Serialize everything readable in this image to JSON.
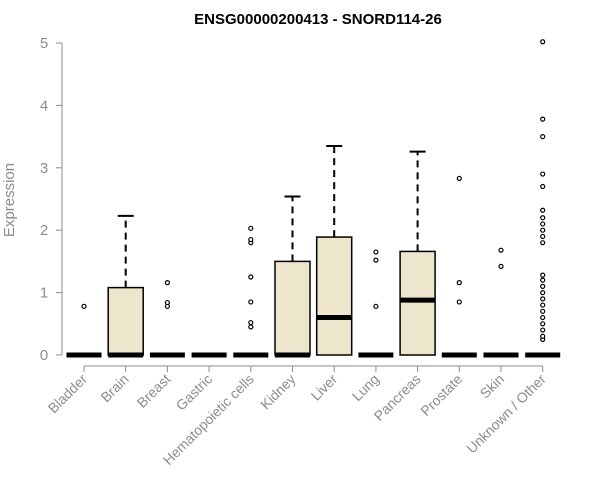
{
  "chart_data": {
    "type": "boxplot",
    "title": "ENSG00000200413 - SNORD114-26",
    "ylabel": "Expression",
    "xlabel": "",
    "ylim": [
      0,
      5
    ],
    "yticks": [
      0,
      1,
      2,
      3,
      4,
      5
    ],
    "grid": false,
    "box_fill": "#ede6cc",
    "categories": [
      "Bladder",
      "Brain",
      "Breast",
      "Gastric",
      "Hematopoietic cells",
      "Kidney",
      "Liver",
      "Lung",
      "Pancreas",
      "Prostate",
      "Skin",
      "Unknown / Other"
    ],
    "boxes": [
      {
        "category": "Bladder",
        "q1": 0,
        "median": 0,
        "q3": 0,
        "whisker_high": 0,
        "outliers": [
          0.78
        ]
      },
      {
        "category": "Brain",
        "q1": 0,
        "median": 0,
        "q3": 1.08,
        "whisker_high": 2.23,
        "outliers": []
      },
      {
        "category": "Breast",
        "q1": 0,
        "median": 0,
        "q3": 0,
        "whisker_high": 0,
        "outliers": [
          0.78,
          0.84,
          1.16
        ]
      },
      {
        "category": "Gastric",
        "q1": 0,
        "median": 0,
        "q3": 0,
        "whisker_high": 0,
        "outliers": []
      },
      {
        "category": "Hematopoietic cells",
        "q1": 0,
        "median": 0,
        "q3": 0,
        "whisker_high": 0,
        "outliers": [
          0.45,
          0.52,
          0.85,
          1.25,
          1.8,
          1.85,
          2.03
        ]
      },
      {
        "category": "Kidney",
        "q1": 0,
        "median": 0,
        "q3": 1.5,
        "whisker_high": 2.54,
        "outliers": []
      },
      {
        "category": "Liver",
        "q1": 0,
        "median": 0.6,
        "q3": 1.89,
        "whisker_high": 3.35,
        "outliers": []
      },
      {
        "category": "Lung",
        "q1": 0,
        "median": 0,
        "q3": 0,
        "whisker_high": 0,
        "outliers": [
          0.78,
          1.52,
          1.65
        ]
      },
      {
        "category": "Pancreas",
        "q1": 0,
        "median": 0.88,
        "q3": 1.66,
        "whisker_high": 3.26,
        "outliers": []
      },
      {
        "category": "Prostate",
        "q1": 0,
        "median": 0,
        "q3": 0,
        "whisker_high": 0,
        "outliers": [
          0.85,
          1.16,
          2.83
        ]
      },
      {
        "category": "Skin",
        "q1": 0,
        "median": 0,
        "q3": 0,
        "whisker_high": 0,
        "outliers": [
          1.42,
          1.68
        ]
      },
      {
        "category": "Unknown / Other",
        "q1": 0,
        "median": 0,
        "q3": 0,
        "whisker_high": 0,
        "outliers": [
          0.25,
          0.3,
          0.4,
          0.5,
          0.6,
          0.7,
          0.8,
          0.9,
          1.0,
          1.1,
          1.2,
          1.28,
          1.8,
          1.9,
          2.0,
          2.1,
          2.2,
          2.32,
          2.7,
          2.9,
          3.5,
          3.78,
          5.02
        ]
      }
    ]
  }
}
